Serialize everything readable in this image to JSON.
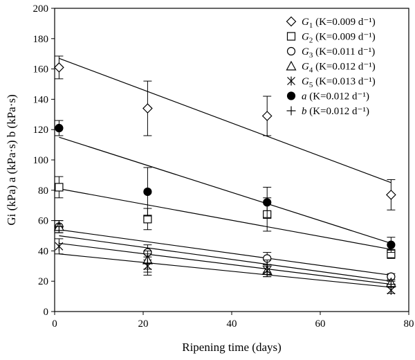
{
  "chart_data": {
    "type": "scatter",
    "xlabel": "Ripening time (days)",
    "ylabel": "Gi (kPa)  a (kPa·s) b (kPa·s)",
    "xlim": [
      0,
      80
    ],
    "ylim": [
      0,
      200
    ],
    "xticks": [
      0,
      20,
      40,
      60,
      80
    ],
    "yticks": [
      0,
      20,
      40,
      60,
      80,
      100,
      120,
      140,
      160,
      180,
      200
    ],
    "grid": false,
    "legend_position": "top-right",
    "series": [
      {
        "name": "G1",
        "legend": "(K=0.009 d⁻¹)",
        "marker": "diamond",
        "x": [
          1,
          21,
          48,
          76
        ],
        "y": [
          161,
          134,
          129,
          77
        ],
        "yerr": [
          7.5,
          18,
          13,
          10
        ],
        "fit": {
          "x": [
            1,
            76
          ],
          "y": [
            167,
            85
          ]
        }
      },
      {
        "name": "G2",
        "legend": "(K=0.009 d⁻¹)",
        "marker": "square",
        "x": [
          1,
          21,
          48,
          76
        ],
        "y": [
          82,
          61,
          64,
          38
        ],
        "yerr": [
          7,
          7,
          11,
          3
        ],
        "fit": {
          "x": [
            1,
            76
          ],
          "y": [
            81,
            41
          ]
        }
      },
      {
        "name": "G3",
        "legend": "(K=0.011 d⁻¹)",
        "marker": "circle-open",
        "x": [
          1,
          21,
          48,
          76
        ],
        "y": [
          56,
          39,
          35,
          23
        ],
        "yerr": [
          4,
          5,
          4,
          2
        ],
        "fit": {
          "x": [
            1,
            76
          ],
          "y": [
            54,
            24
          ]
        }
      },
      {
        "name": "G4",
        "legend": "(K=0.012 d⁻¹)",
        "marker": "triangle",
        "x": [
          1,
          21,
          48,
          76
        ],
        "y": [
          56,
          34,
          27,
          19
        ],
        "yerr": [
          4,
          6,
          4,
          2
        ],
        "fit": {
          "x": [
            1,
            76
          ],
          "y": [
            50,
            20
          ]
        }
      },
      {
        "name": "G5",
        "legend": "(K=0.013 d⁻¹)",
        "marker": "asterisk",
        "x": [
          1,
          21,
          48,
          76
        ],
        "y": [
          43,
          30,
          27,
          14
        ],
        "yerr": [
          5,
          6,
          4,
          2
        ],
        "fit": {
          "x": [
            1,
            76
          ],
          "y": [
            38,
            16
          ]
        }
      },
      {
        "name": "a",
        "legend": "(K=0.012 d⁻¹)",
        "marker": "circle-filled",
        "x": [
          1,
          21,
          48,
          76
        ],
        "y": [
          121,
          79,
          72,
          44
        ],
        "yerr": [
          5,
          16,
          10,
          5
        ],
        "fit": {
          "x": [
            1,
            76
          ],
          "y": [
            115,
            45
          ]
        }
      },
      {
        "name": "b",
        "legend": "(K=0.012 d⁻¹)",
        "marker": "plus",
        "x": [
          1,
          21,
          48,
          76
        ],
        "y": [
          56,
          32,
          30,
          18
        ],
        "yerr": [
          4,
          6,
          4,
          2
        ],
        "fit": {
          "x": [
            1,
            76
          ],
          "y": [
            45,
            18
          ]
        }
      }
    ]
  }
}
